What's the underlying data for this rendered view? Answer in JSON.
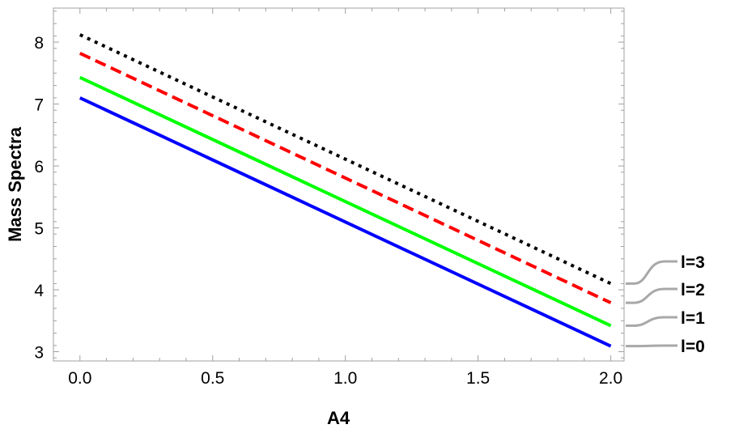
{
  "chart_data": {
    "type": "line",
    "title": "",
    "xlabel": "A4",
    "ylabel": "Mass Spectra",
    "xlim": [
      -0.1,
      2.05
    ],
    "ylim": [
      2.85,
      8.55
    ],
    "x_ticks": [
      "0.0",
      "0.5",
      "1.0",
      "1.5",
      "2.0"
    ],
    "x_tick_values": [
      0.0,
      0.5,
      1.0,
      1.5,
      2.0
    ],
    "y_ticks": [
      "3",
      "4",
      "5",
      "6",
      "7",
      "8"
    ],
    "y_tick_values": [
      3,
      4,
      5,
      6,
      7,
      8
    ],
    "grid": false,
    "legend_placement": "right, labels callout to line ends",
    "series": [
      {
        "name": "l=0",
        "x": [
          0.0,
          2.0
        ],
        "y": [
          7.1,
          3.09
        ],
        "color": "#0000ff",
        "dash": "solid"
      },
      {
        "name": "l=1",
        "x": [
          0.0,
          2.0
        ],
        "y": [
          7.43,
          3.42
        ],
        "color": "#00ff00",
        "dash": "solid"
      },
      {
        "name": "l=2",
        "x": [
          0.0,
          2.0
        ],
        "y": [
          7.82,
          3.79
        ],
        "color": "#ff0000",
        "dash": "dashed"
      },
      {
        "name": "l=3",
        "x": [
          0.0,
          2.0
        ],
        "y": [
          8.12,
          4.1
        ],
        "color": "#000000",
        "dash": "dotted"
      }
    ]
  }
}
